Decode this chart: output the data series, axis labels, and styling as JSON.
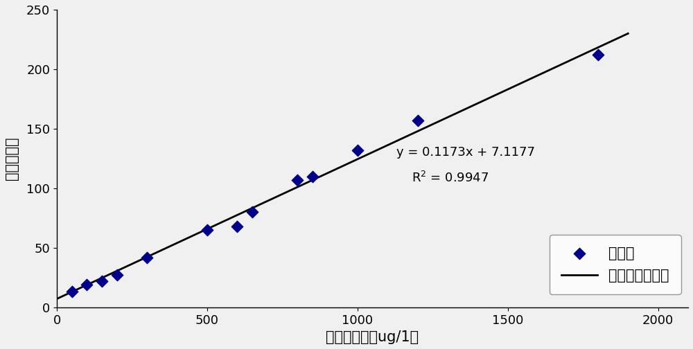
{
  "x_data": [
    50,
    100,
    150,
    200,
    300,
    500,
    600,
    650,
    800,
    850,
    1000,
    1200,
    1800
  ],
  "y_data": [
    13,
    19,
    22,
    27,
    42,
    65,
    68,
    80,
    107,
    110,
    132,
    157,
    212
  ],
  "slope": 0.1173,
  "intercept": 7.1177,
  "r_squared": 0.9947,
  "x_line_start": 0,
  "x_line_end": 1900,
  "xlabel": "叶绿素浓度（ug/1）",
  "ylabel": "荧光强度値",
  "equation_text": "y = 0.1173x + 7.1177",
  "r2_text": "R$^2$ = 0.9947",
  "legend_scatter": "荧光値",
  "legend_line": "线性（荧光値）",
  "marker_color": "#00008B",
  "line_color": "#000000",
  "bg_color": "#f0f0f0",
  "xlim": [
    0,
    2100
  ],
  "ylim": [
    0,
    250
  ],
  "xticks": [
    0,
    500,
    1000,
    1500,
    2000
  ],
  "yticks": [
    0,
    50,
    100,
    150,
    200,
    250
  ],
  "ann_eq_x": 1130,
  "ann_eq_y": 125,
  "ann_r2_x": 1180,
  "ann_r2_y": 103,
  "eq_fontsize": 13,
  "label_fontsize": 15,
  "tick_fontsize": 13,
  "legend_fontsize": 15
}
